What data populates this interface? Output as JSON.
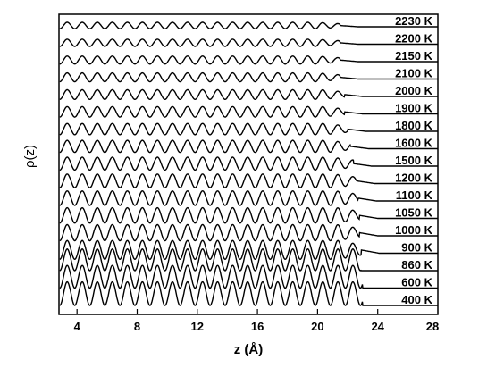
{
  "chart_data": {
    "type": "line",
    "xlabel": "z (Å)",
    "ylabel": "ρ(z)",
    "xlim": [
      2.8,
      28
    ],
    "xticks": [
      4,
      8,
      12,
      16,
      20,
      24,
      28
    ],
    "grid": false,
    "legend": "none",
    "series": [
      {
        "name": "2230 K",
        "oscillation_end_z": 21.5
      },
      {
        "name": "2200 K",
        "oscillation_end_z": 21.5
      },
      {
        "name": "2150 K",
        "oscillation_end_z": 21.5
      },
      {
        "name": "2100 K",
        "oscillation_end_z": 21.5
      },
      {
        "name": "2000 K",
        "oscillation_end_z": 21.8
      },
      {
        "name": "1900 K",
        "oscillation_end_z": 21.8
      },
      {
        "name": "1800 K",
        "oscillation_end_z": 22.0
      },
      {
        "name": "1600 K",
        "oscillation_end_z": 22.2
      },
      {
        "name": "1500 K",
        "oscillation_end_z": 22.4
      },
      {
        "name": "1200 K",
        "oscillation_end_z": 22.6
      },
      {
        "name": "1100 K",
        "oscillation_end_z": 22.7
      },
      {
        "name": "1050 K",
        "oscillation_end_z": 22.8
      },
      {
        "name": "1000 K",
        "oscillation_end_z": 22.8
      },
      {
        "name": "900 K",
        "oscillation_end_z": 22.9
      },
      {
        "name": "860 K",
        "oscillation_end_z": 22.9
      },
      {
        "name": "600 K",
        "oscillation_end_z": 23.0
      },
      {
        "name": "400 K",
        "oscillation_end_z": 23.0
      }
    ]
  }
}
